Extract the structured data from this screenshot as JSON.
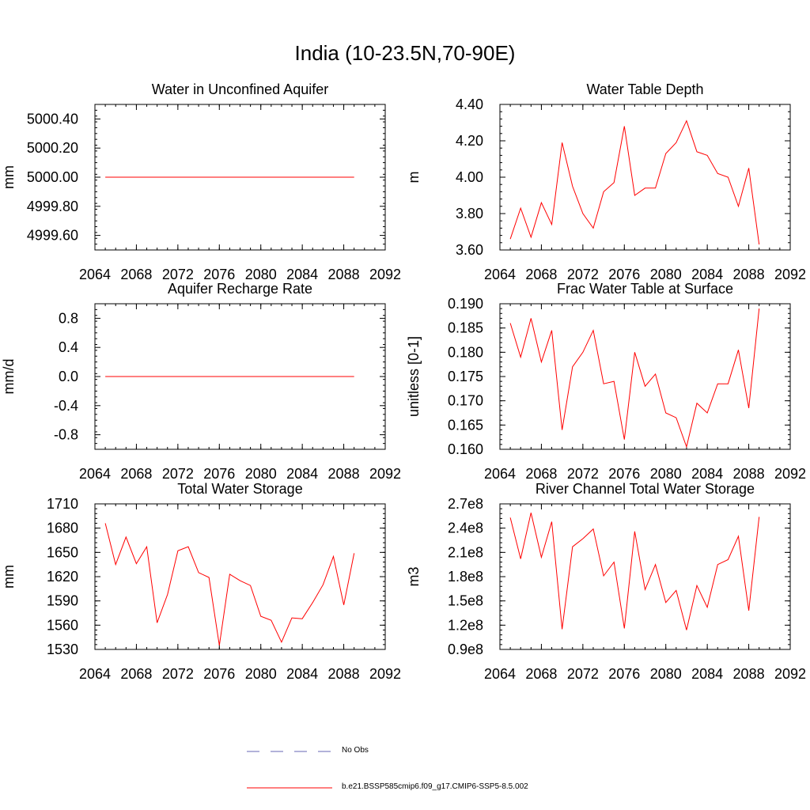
{
  "title": "India (10-23.5N,70-90E)",
  "colors": {
    "model": "#ff0000",
    "obs": "#6464b4",
    "axis": "#000000"
  },
  "legend": {
    "obs_label": "No Obs",
    "model_label": "b.e21.BSSP585cmip6.f09_g17.CMIP6-SSP5-8.5.002"
  },
  "chart_data": [
    {
      "type": "line",
      "title": "Water in Unconfined Aquifer",
      "ylabel": "mm",
      "xlim": [
        2064,
        2092
      ],
      "xticks": [
        "2064",
        "2068",
        "2072",
        "2076",
        "2080",
        "2084",
        "2088",
        "2092"
      ],
      "ylim": [
        4999.5,
        5000.5
      ],
      "yticks": [
        4999.6,
        4999.8,
        5000.0,
        5000.2,
        5000.4
      ],
      "ytick_labels": [
        "4999.60",
        "4999.80",
        "5000.00",
        "5000.20",
        "5000.40"
      ],
      "x": [
        2065,
        2066,
        2067,
        2068,
        2069,
        2070,
        2071,
        2072,
        2073,
        2074,
        2075,
        2076,
        2077,
        2078,
        2079,
        2080,
        2081,
        2082,
        2083,
        2084,
        2085,
        2086,
        2087,
        2088,
        2089
      ],
      "series": [
        {
          "values": [
            5000,
            5000,
            5000,
            5000,
            5000,
            5000,
            5000,
            5000,
            5000,
            5000,
            5000,
            5000,
            5000,
            5000,
            5000,
            5000,
            5000,
            5000,
            5000,
            5000,
            5000,
            5000,
            5000,
            5000,
            5000
          ]
        }
      ]
    },
    {
      "type": "line",
      "title": "Water Table Depth",
      "ylabel": "m",
      "xlim": [
        2064,
        2092
      ],
      "xticks": [
        "2064",
        "2068",
        "2072",
        "2076",
        "2080",
        "2084",
        "2088",
        "2092"
      ],
      "ylim": [
        3.6,
        4.4
      ],
      "yticks": [
        3.6,
        3.8,
        4.0,
        4.2,
        4.4
      ],
      "ytick_labels": [
        "3.60",
        "3.80",
        "4.00",
        "4.20",
        "4.40"
      ],
      "x": [
        2065,
        2066,
        2067,
        2068,
        2069,
        2070,
        2071,
        2072,
        2073,
        2074,
        2075,
        2076,
        2077,
        2078,
        2079,
        2080,
        2081,
        2082,
        2083,
        2084,
        2085,
        2086,
        2087,
        2088,
        2089
      ],
      "series": [
        {
          "values": [
            3.66,
            3.83,
            3.67,
            3.86,
            3.74,
            4.19,
            3.95,
            3.8,
            3.72,
            3.92,
            3.97,
            4.28,
            3.9,
            3.94,
            3.94,
            4.13,
            4.19,
            4.31,
            4.14,
            4.12,
            4.02,
            4.0,
            3.84,
            4.05,
            3.63
          ]
        }
      ]
    },
    {
      "type": "line",
      "title": "Aquifer Recharge Rate",
      "ylabel": "mm/d",
      "xlim": [
        2064,
        2092
      ],
      "xticks": [
        "2064",
        "2068",
        "2072",
        "2076",
        "2080",
        "2084",
        "2088",
        "2092"
      ],
      "ylim": [
        -1.0,
        1.0
      ],
      "yticks": [
        -0.8,
        -0.4,
        0.0,
        0.4,
        0.8
      ],
      "ytick_labels": [
        "-0.8",
        "-0.4",
        "0.0",
        "0.4",
        "0.8"
      ],
      "x": [
        2065,
        2066,
        2067,
        2068,
        2069,
        2070,
        2071,
        2072,
        2073,
        2074,
        2075,
        2076,
        2077,
        2078,
        2079,
        2080,
        2081,
        2082,
        2083,
        2084,
        2085,
        2086,
        2087,
        2088,
        2089
      ],
      "series": [
        {
          "values": [
            0,
            0,
            0,
            0,
            0,
            0,
            0,
            0,
            0,
            0,
            0,
            0,
            0,
            0,
            0,
            0,
            0,
            0,
            0,
            0,
            0,
            0,
            0,
            0,
            0
          ]
        }
      ]
    },
    {
      "type": "line",
      "title": "Frac Water Table at Surface",
      "ylabel": "unitless [0-1]",
      "xlim": [
        2064,
        2092
      ],
      "xticks": [
        "2064",
        "2068",
        "2072",
        "2076",
        "2080",
        "2084",
        "2088",
        "2092"
      ],
      "ylim": [
        0.16,
        0.19
      ],
      "yticks": [
        0.16,
        0.165,
        0.17,
        0.175,
        0.18,
        0.185,
        0.19
      ],
      "ytick_labels": [
        "0.160",
        "0.165",
        "0.170",
        "0.175",
        "0.180",
        "0.185",
        "0.190"
      ],
      "x": [
        2065,
        2066,
        2067,
        2068,
        2069,
        2070,
        2071,
        2072,
        2073,
        2074,
        2075,
        2076,
        2077,
        2078,
        2079,
        2080,
        2081,
        2082,
        2083,
        2084,
        2085,
        2086,
        2087,
        2088,
        2089
      ],
      "series": [
        {
          "values": [
            0.186,
            0.179,
            0.187,
            0.178,
            0.1845,
            0.164,
            0.177,
            0.18,
            0.1845,
            0.1735,
            0.174,
            0.162,
            0.18,
            0.173,
            0.1755,
            0.1675,
            0.1665,
            0.1605,
            0.1695,
            0.1675,
            0.1735,
            0.1735,
            0.1805,
            0.1685,
            0.189
          ]
        }
      ]
    },
    {
      "type": "line",
      "title": "Total Water Storage",
      "ylabel": "mm",
      "xlim": [
        2064,
        2092
      ],
      "xticks": [
        "2064",
        "2068",
        "2072",
        "2076",
        "2080",
        "2084",
        "2088",
        "2092"
      ],
      "ylim": [
        1530,
        1710
      ],
      "yticks": [
        1530,
        1560,
        1590,
        1620,
        1650,
        1680,
        1710
      ],
      "ytick_labels": [
        "1530",
        "1560",
        "1590",
        "1620",
        "1650",
        "1680",
        "1710"
      ],
      "x": [
        2065,
        2066,
        2067,
        2068,
        2069,
        2070,
        2071,
        2072,
        2073,
        2074,
        2075,
        2076,
        2077,
        2078,
        2079,
        2080,
        2081,
        2082,
        2083,
        2084,
        2085,
        2086,
        2087,
        2088,
        2089
      ],
      "series": [
        {
          "values": [
            1686,
            1635,
            1669,
            1636,
            1657,
            1563,
            1598,
            1652,
            1657,
            1625,
            1619,
            1535,
            1623,
            1615,
            1609,
            1571,
            1566,
            1539,
            1569,
            1568,
            1588,
            1610,
            1645,
            1585,
            1649
          ]
        }
      ]
    },
    {
      "type": "line",
      "title": "River Channel Total Water Storage",
      "ylabel": "m3",
      "xlim": [
        2064,
        2092
      ],
      "xticks": [
        "2064",
        "2068",
        "2072",
        "2076",
        "2080",
        "2084",
        "2088",
        "2092"
      ],
      "ylim": [
        90000000,
        270000000
      ],
      "yticks": [
        90000000,
        120000000,
        150000000,
        180000000,
        210000000,
        240000000,
        270000000
      ],
      "ytick_labels": [
        "0.9e8",
        "1.2e8",
        "1.5e8",
        "1.8e8",
        "2.1e8",
        "2.4e8",
        "2.7e8"
      ],
      "x": [
        2065,
        2066,
        2067,
        2068,
        2069,
        2070,
        2071,
        2072,
        2073,
        2074,
        2075,
        2076,
        2077,
        2078,
        2079,
        2080,
        2081,
        2082,
        2083,
        2084,
        2085,
        2086,
        2087,
        2088,
        2089
      ],
      "series": [
        {
          "values": [
            253000000,
            202000000,
            259000000,
            204000000,
            248000000,
            115000000,
            217000000,
            227000000,
            239000000,
            181000000,
            198000000,
            116000000,
            236000000,
            164000000,
            195000000,
            148000000,
            163000000,
            114000000,
            169000000,
            142000000,
            195000000,
            201000000,
            230000000,
            138000000,
            254000000
          ]
        }
      ]
    }
  ]
}
